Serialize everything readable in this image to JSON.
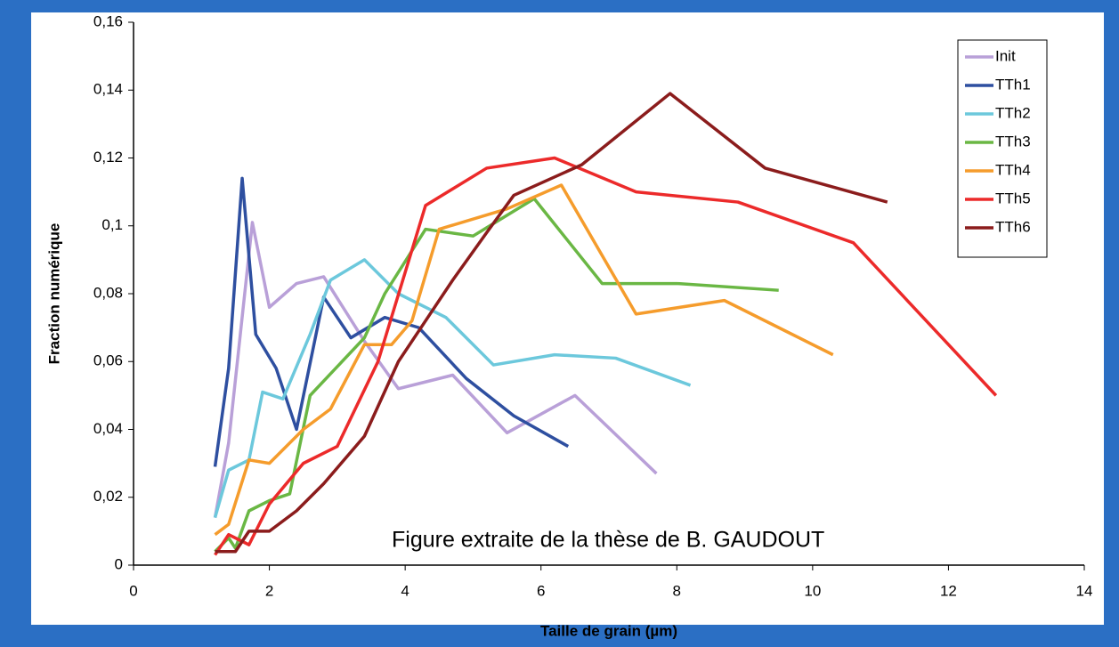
{
  "chart_data": {
    "type": "line",
    "xlabel": "Taille de grain (µm)",
    "ylabel": "Fraction numérique",
    "annotation": "Figure extraite de la thèse de B. GAUDOUT",
    "xlim": [
      0,
      14
    ],
    "xticks": [
      0,
      2,
      4,
      6,
      8,
      10,
      12,
      14
    ],
    "ylim": [
      0,
      0.16
    ],
    "yticks": [
      {
        "value": 0,
        "label": "0"
      },
      {
        "value": 0.02,
        "label": "0,02"
      },
      {
        "value": 0.04,
        "label": "0,04"
      },
      {
        "value": 0.06,
        "label": "0,06"
      },
      {
        "value": 0.08,
        "label": "0,08"
      },
      {
        "value": 0.1,
        "label": "0,1"
      },
      {
        "value": 0.12,
        "label": "0,12"
      },
      {
        "value": 0.14,
        "label": "0,14"
      },
      {
        "value": 0.16,
        "label": "0,16"
      }
    ],
    "grid": false,
    "legend": "upper right",
    "series": [
      {
        "name": "Init",
        "color": "#b9a0d8",
        "x": [
          1.2,
          1.4,
          1.75,
          2.0,
          2.4,
          2.8,
          3.4,
          3.9,
          4.7,
          5.5,
          6.5,
          7.7
        ],
        "values": [
          0.014,
          0.036,
          0.101,
          0.076,
          0.083,
          0.085,
          0.066,
          0.052,
          0.056,
          0.039,
          0.05,
          0.027
        ]
      },
      {
        "name": "TTh1",
        "color": "#2e4fa0",
        "x": [
          1.2,
          1.4,
          1.6,
          1.8,
          2.1,
          2.4,
          2.8,
          3.2,
          3.7,
          4.2,
          4.9,
          5.6,
          6.4
        ],
        "values": [
          0.029,
          0.058,
          0.114,
          0.068,
          0.058,
          0.04,
          0.079,
          0.067,
          0.073,
          0.07,
          0.055,
          0.044,
          0.035
        ]
      },
      {
        "name": "TTh2",
        "color": "#6cc8dc",
        "x": [
          1.2,
          1.4,
          1.7,
          1.9,
          2.2,
          2.6,
          2.9,
          3.4,
          3.9,
          4.6,
          5.3,
          6.2,
          7.1,
          8.2
        ],
        "values": [
          0.014,
          0.028,
          0.031,
          0.051,
          0.049,
          0.068,
          0.084,
          0.09,
          0.08,
          0.073,
          0.059,
          0.062,
          0.061,
          0.053
        ]
      },
      {
        "name": "TTh3",
        "color": "#6ab744",
        "x": [
          1.2,
          1.4,
          1.5,
          1.7,
          2.0,
          2.3,
          2.6,
          3.4,
          3.7,
          4.3,
          5.0,
          5.9,
          6.9,
          8.0,
          9.5
        ],
        "values": [
          0.004,
          0.008,
          0.005,
          0.016,
          0.019,
          0.021,
          0.05,
          0.067,
          0.08,
          0.099,
          0.097,
          0.108,
          0.083,
          0.083,
          0.081
        ]
      },
      {
        "name": "TTh4",
        "color": "#f59c2c",
        "x": [
          1.2,
          1.4,
          1.7,
          2.0,
          2.5,
          2.9,
          3.4,
          3.8,
          4.1,
          4.5,
          5.5,
          6.3,
          7.4,
          8.7,
          10.3
        ],
        "values": [
          0.009,
          0.012,
          0.031,
          0.03,
          0.04,
          0.046,
          0.065,
          0.065,
          0.072,
          0.099,
          0.105,
          0.112,
          0.074,
          0.078,
          0.062
        ]
      },
      {
        "name": "TTh5",
        "color": "#ec2a2a",
        "x": [
          1.2,
          1.4,
          1.7,
          2.0,
          2.5,
          3.0,
          3.6,
          4.3,
          5.2,
          6.2,
          7.4,
          8.9,
          10.6,
          12.7
        ],
        "values": [
          0.003,
          0.009,
          0.006,
          0.018,
          0.03,
          0.035,
          0.06,
          0.106,
          0.117,
          0.12,
          0.11,
          0.107,
          0.095,
          0.05
        ]
      },
      {
        "name": "TTh6",
        "color": "#8b1c1c",
        "x": [
          1.2,
          1.5,
          1.7,
          2.0,
          2.4,
          2.8,
          3.4,
          3.9,
          4.2,
          4.7,
          5.2,
          5.6,
          6.6,
          7.9,
          9.3,
          11.1
        ],
        "values": [
          0.004,
          0.004,
          0.01,
          0.01,
          0.016,
          0.024,
          0.038,
          0.06,
          0.069,
          0.084,
          0.098,
          0.109,
          0.118,
          0.139,
          0.117,
          0.107
        ]
      }
    ]
  }
}
